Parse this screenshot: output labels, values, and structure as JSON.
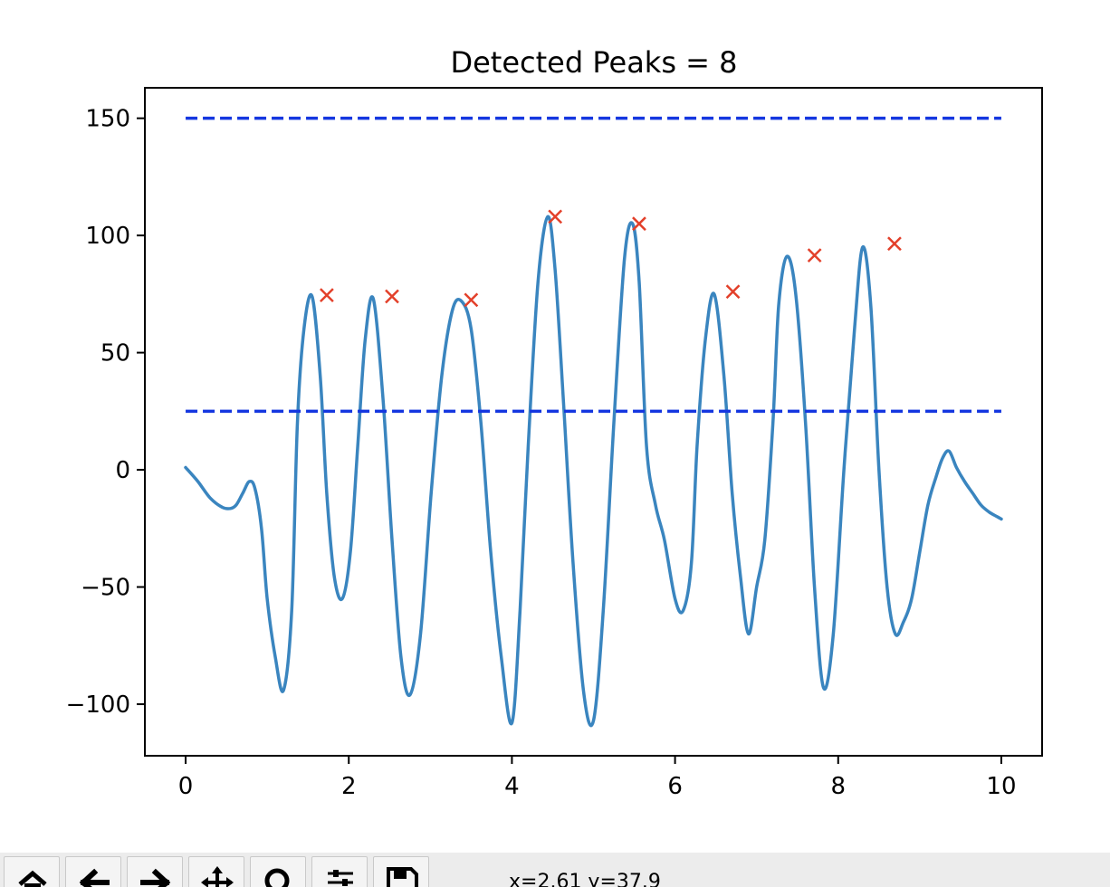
{
  "chart_data": {
    "type": "line",
    "title": "Detected Peaks = 8",
    "xlabel": "",
    "ylabel": "",
    "xlim": [
      -0.5,
      10.5
    ],
    "ylim": [
      -122,
      163
    ],
    "x_ticks": [
      0,
      2,
      4,
      6,
      8,
      10
    ],
    "x_tick_labels": [
      "0",
      "2",
      "4",
      "6",
      "8",
      "10"
    ],
    "y_ticks": [
      150,
      100,
      50,
      0,
      -50,
      -100
    ],
    "y_tick_labels": [
      "150",
      "100",
      "50",
      "0",
      "−50",
      "−100"
    ],
    "grid": false,
    "series": [
      {
        "style": "solid",
        "color": "#3a85bf",
        "x": [
          0,
          0.15,
          0.3,
          0.45,
          0.55,
          0.62,
          0.7,
          0.78,
          0.85,
          0.93,
          1.0,
          1.1,
          1.2,
          1.3,
          1.37,
          1.45,
          1.55,
          1.65,
          1.73,
          1.82,
          1.92,
          2.02,
          2.11,
          2.2,
          2.3,
          2.42,
          2.53,
          2.64,
          2.75,
          2.88,
          3.01,
          3.14,
          3.27,
          3.38,
          3.5,
          3.62,
          3.74,
          3.87,
          4.0,
          4.1,
          4.2,
          4.32,
          4.44,
          4.53,
          4.63,
          4.75,
          4.88,
          5.0,
          5.12,
          5.25,
          5.38,
          5.48,
          5.56,
          5.65,
          5.76,
          5.87,
          6.0,
          6.1,
          6.2,
          6.27,
          6.37,
          6.48,
          6.6,
          6.7,
          6.8,
          6.9,
          7.0,
          7.1,
          7.2,
          7.27,
          7.37,
          7.48,
          7.6,
          7.71,
          7.82,
          7.94,
          8.07,
          8.2,
          8.3,
          8.4,
          8.5,
          8.6,
          8.7,
          8.8,
          8.9,
          9.0,
          9.1,
          9.2,
          9.28,
          9.36,
          9.45,
          9.55,
          9.65,
          9.75,
          9.85,
          9.95,
          10.0
        ],
        "y": [
          1,
          -5,
          -12,
          -16,
          -16.5,
          -15,
          -10,
          -5,
          -8,
          -25,
          -55,
          -80,
          -94,
          -60,
          20,
          60,
          74,
          40,
          -10,
          -45,
          -55,
          -35,
          10,
          55,
          73,
          30,
          -30,
          -80,
          -96,
          -70,
          -10,
          40,
          68,
          72,
          60,
          20,
          -35,
          -80,
          -108,
          -60,
          10,
          80,
          108,
          85,
          30,
          -40,
          -95,
          -107,
          -60,
          20,
          90,
          105,
          80,
          10,
          -15,
          -30,
          -55,
          -60,
          -40,
          10,
          55,
          75,
          40,
          -10,
          -45,
          -70,
          -50,
          -30,
          20,
          70,
          91,
          75,
          20,
          -50,
          -93,
          -70,
          0,
          60,
          95,
          70,
          0,
          -50,
          -70,
          -65,
          -55,
          -35,
          -15,
          -3,
          5,
          8,
          1,
          -5,
          -10,
          -15,
          -18,
          -20,
          -21
        ]
      },
      {
        "style": "dashed",
        "color": "#1537e0",
        "x": [
          0,
          10
        ],
        "y": [
          150,
          150
        ]
      },
      {
        "style": "dashed",
        "color": "#1537e0",
        "x": [
          0,
          10
        ],
        "y": [
          25,
          25
        ]
      },
      {
        "style": "markers",
        "marker": "x",
        "color": "#e3402a",
        "x": [
          1.73,
          2.53,
          3.5,
          4.53,
          5.56,
          6.71,
          7.71,
          8.69
        ],
        "y": [
          74.5,
          74,
          72.5,
          108,
          105,
          76,
          91.5,
          96.5
        ]
      }
    ]
  },
  "toolbar": {
    "buttons": [
      {
        "name": "home-icon",
        "label": "Home"
      },
      {
        "name": "back-arrow-icon",
        "label": "Back"
      },
      {
        "name": "forward-arrow-icon",
        "label": "Forward"
      },
      {
        "name": "pan-icon",
        "label": "Pan"
      },
      {
        "name": "zoom-icon",
        "label": "Zoom"
      },
      {
        "name": "configure-subplots-icon",
        "label": "Configure subplots"
      },
      {
        "name": "save-icon",
        "label": "Save"
      }
    ],
    "coords": "x=2.61 y=37.9"
  }
}
